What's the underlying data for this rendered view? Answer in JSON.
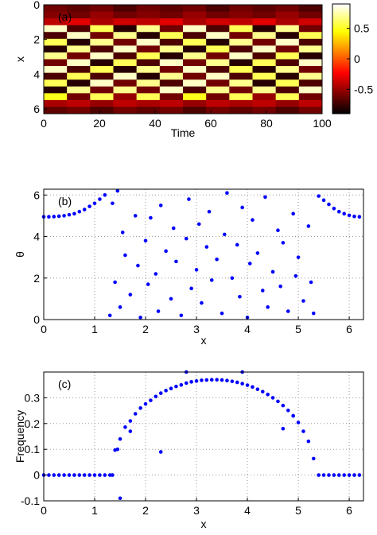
{
  "chart_data": [
    {
      "type": "heatmap",
      "label": "(a)",
      "xlabel": "Time",
      "ylabel": "x",
      "xlim": [
        0,
        100
      ],
      "ylim": [
        0,
        6.28
      ],
      "y_reversed": true,
      "xticks": [
        0,
        20,
        40,
        60,
        80,
        100
      ],
      "yticks": [
        0,
        2,
        4,
        6
      ],
      "zlim": [
        -0.9,
        0.9
      ],
      "zticks": [
        0.5,
        0,
        -0.5
      ],
      "colormap": "hot",
      "z": [
        [
          -0.6,
          -0.65,
          -0.6,
          -0.7,
          -0.6,
          -0.65,
          -0.6,
          -0.7,
          -0.6,
          -0.65,
          -0.6,
          -0.7
        ],
        [
          -0.55,
          -0.6,
          -0.5,
          -0.6,
          -0.55,
          -0.6,
          -0.5,
          -0.6,
          -0.55,
          -0.6,
          -0.5,
          -0.6
        ],
        [
          -0.4,
          -0.3,
          -0.45,
          -0.35,
          -0.4,
          -0.3,
          -0.45,
          -0.35,
          -0.4,
          -0.3,
          -0.45,
          -0.35
        ],
        [
          0.8,
          -0.7,
          0.6,
          -0.8,
          0.7,
          -0.6,
          0.8,
          -0.7,
          0.6,
          -0.8,
          0.7,
          -0.6
        ],
        [
          -0.7,
          0.8,
          -0.6,
          0.7,
          -0.8,
          0.6,
          -0.7,
          0.8,
          -0.6,
          0.7,
          -0.8,
          0.6
        ],
        [
          0.6,
          -0.8,
          0.7,
          -0.6,
          0.8,
          -0.7,
          0.6,
          -0.8,
          0.7,
          -0.6,
          0.8,
          -0.7
        ],
        [
          -0.8,
          0.7,
          -0.7,
          0.8,
          -0.6,
          0.7,
          -0.8,
          0.6,
          -0.7,
          0.8,
          -0.6,
          0.7
        ],
        [
          0.7,
          -0.6,
          0.8,
          -0.7,
          0.6,
          -0.8,
          0.7,
          -0.6,
          0.8,
          -0.7,
          0.6,
          -0.8
        ],
        [
          -0.6,
          0.8,
          -0.8,
          0.6,
          -0.7,
          0.8,
          -0.6,
          0.7,
          -0.8,
          0.6,
          -0.7,
          0.8
        ],
        [
          0.8,
          -0.7,
          0.6,
          -0.8,
          0.7,
          -0.6,
          0.8,
          -0.7,
          0.6,
          -0.8,
          0.7,
          -0.6
        ],
        [
          -0.7,
          0.6,
          -0.7,
          0.8,
          -0.8,
          0.7,
          -0.6,
          0.8,
          -0.7,
          0.6,
          -0.8,
          0.7
        ],
        [
          0.6,
          -0.8,
          0.8,
          -0.6,
          0.7,
          -0.7,
          0.8,
          -0.6,
          0.7,
          -0.8,
          0.6,
          -0.7
        ],
        [
          -0.8,
          0.7,
          -0.6,
          0.7,
          -0.6,
          0.8,
          -0.7,
          0.7,
          -0.6,
          0.7,
          -0.7,
          0.8
        ],
        [
          0.5,
          -0.6,
          0.6,
          -0.5,
          0.6,
          -0.6,
          0.5,
          -0.6,
          0.6,
          -0.5,
          0.6,
          -0.6
        ],
        [
          -0.45,
          -0.4,
          -0.5,
          -0.4,
          -0.45,
          -0.4,
          -0.5,
          -0.4,
          -0.45,
          -0.4,
          -0.5,
          -0.4
        ],
        [
          -0.65,
          -0.6,
          -0.7,
          -0.6,
          -0.65,
          -0.6,
          -0.7,
          -0.6,
          -0.65,
          -0.6,
          -0.7,
          -0.6
        ]
      ]
    },
    {
      "type": "scatter",
      "label": "(b)",
      "xlabel": "x",
      "ylabel": "θ",
      "color": "#0000ff",
      "grid": true,
      "xlim": [
        0,
        6.28
      ],
      "ylim": [
        0,
        6.28
      ],
      "xticks": [
        0,
        1,
        2,
        3,
        4,
        5,
        6
      ],
      "yticks": [
        0,
        2,
        4,
        6
      ],
      "x": [
        0,
        0.1,
        0.2,
        0.3,
        0.4,
        0.5,
        0.6,
        0.7,
        0.8,
        0.9,
        1.0,
        1.1,
        1.2,
        5.4,
        5.5,
        5.6,
        5.7,
        5.8,
        5.9,
        6.0,
        6.1,
        6.2,
        1.3,
        1.35,
        1.4,
        1.45,
        1.5,
        1.55,
        1.6,
        1.7,
        1.8,
        1.85,
        1.9,
        2.0,
        2.05,
        2.1,
        2.2,
        2.25,
        2.3,
        2.4,
        2.5,
        2.55,
        2.6,
        2.7,
        2.8,
        2.85,
        2.9,
        3.0,
        3.05,
        3.1,
        3.2,
        3.25,
        3.3,
        3.4,
        3.5,
        3.55,
        3.6,
        3.7,
        3.8,
        3.85,
        3.9,
        4.0,
        4.05,
        4.1,
        4.2,
        4.3,
        4.35,
        4.4,
        4.5,
        4.6,
        4.65,
        4.7,
        4.8,
        4.9,
        4.95,
        5.0,
        5.1,
        5.2,
        5.25,
        5.3
      ],
      "y": [
        4.95,
        4.95,
        4.96,
        4.98,
        5.0,
        5.05,
        5.1,
        5.2,
        5.3,
        5.45,
        5.6,
        5.8,
        6.0,
        5.95,
        5.75,
        5.55,
        5.35,
        5.2,
        5.1,
        5.02,
        4.97,
        4.95,
        0.2,
        5.6,
        1.8,
        6.2,
        0.6,
        4.2,
        3.1,
        1.2,
        5.0,
        2.6,
        0.1,
        3.8,
        1.7,
        4.9,
        2.2,
        0.4,
        5.5,
        3.3,
        1.0,
        4.4,
        2.8,
        0.2,
        3.9,
        5.8,
        1.5,
        2.4,
        4.6,
        0.8,
        3.5,
        5.2,
        1.9,
        2.9,
        0.3,
        4.1,
        6.1,
        2.0,
        3.6,
        1.1,
        5.4,
        0.1,
        2.7,
        4.8,
        3.2,
        1.4,
        5.9,
        0.6,
        2.3,
        4.3,
        1.6,
        3.7,
        0.4,
        5.1,
        2.1,
        3.0,
        0.9,
        4.5,
        1.8,
        0.3
      ]
    },
    {
      "type": "scatter",
      "label": "(c)",
      "xlabel": "x",
      "ylabel": "Frequency",
      "color": "#0000ff",
      "grid": true,
      "xlim": [
        0,
        6.28
      ],
      "ylim": [
        -0.1,
        0.4
      ],
      "xticks": [
        0,
        1,
        2,
        3,
        4,
        5,
        6
      ],
      "yticks": [
        -0.1,
        0,
        0.1,
        0.2,
        0.3
      ],
      "x": [
        0,
        0.1,
        0.2,
        0.3,
        0.4,
        0.5,
        0.6,
        0.7,
        0.8,
        0.9,
        1.0,
        1.1,
        1.2,
        1.3,
        5.4,
        5.5,
        5.6,
        5.7,
        5.8,
        5.9,
        6.0,
        6.1,
        6.2,
        1.4,
        1.5,
        1.6,
        1.7,
        1.8,
        1.9,
        2.0,
        2.1,
        2.2,
        2.3,
        2.4,
        2.5,
        2.6,
        2.7,
        2.8,
        2.9,
        3.0,
        3.1,
        3.2,
        3.3,
        3.4,
        3.5,
        3.6,
        3.7,
        3.8,
        3.9,
        4.0,
        4.1,
        4.2,
        4.3,
        4.4,
        4.5,
        4.6,
        4.7,
        4.8,
        4.9,
        5.0,
        5.1,
        5.2,
        5.3,
        1.35,
        1.5,
        2.3,
        1.7,
        2.8,
        4.7,
        4.9,
        3.9,
        1.45
      ],
      "y": [
        0,
        0,
        0,
        0,
        0,
        0,
        0,
        0,
        0,
        0,
        0,
        0,
        0,
        0,
        0,
        0,
        0,
        0,
        0,
        0,
        0,
        0,
        0,
        0.097,
        0.14,
        0.186,
        0.21,
        0.238,
        0.26,
        0.276,
        0.29,
        0.305,
        0.318,
        0.328,
        0.336,
        0.344,
        0.35,
        0.357,
        0.362,
        0.365,
        0.368,
        0.369,
        0.37,
        0.37,
        0.369,
        0.367,
        0.364,
        0.36,
        0.355,
        0.349,
        0.342,
        0.333,
        0.324,
        0.313,
        0.3,
        0.286,
        0.27,
        0.251,
        0.23,
        0.204,
        0.17,
        0.131,
        0.064,
        0.0,
        -0.09,
        0.09,
        0.17,
        0.4,
        0.18,
        0.23,
        0.4,
        0.1
      ]
    }
  ]
}
